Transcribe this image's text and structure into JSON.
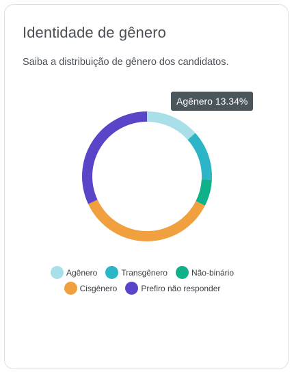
{
  "card": {
    "title": "Identidade de gênero",
    "subtitle": "Saiba a distribuição de gênero dos candidatos."
  },
  "tooltip": {
    "text": "Agênero 13.34%"
  },
  "chart_data": {
    "type": "pie",
    "donut": true,
    "title": "Identidade de gênero",
    "legend_position": "bottom",
    "unit": "%",
    "categories": [
      "Agênero",
      "Transgênero",
      "Não-binário",
      "Cisgênero",
      "Prefiro não responder"
    ],
    "values": [
      13.34,
      12.5,
      6.6,
      35.56,
      32.0
    ],
    "colors": [
      "#a8dfe8",
      "#2bb5c7",
      "#0fb18a",
      "#f0a03f",
      "#5a45c8"
    ]
  }
}
